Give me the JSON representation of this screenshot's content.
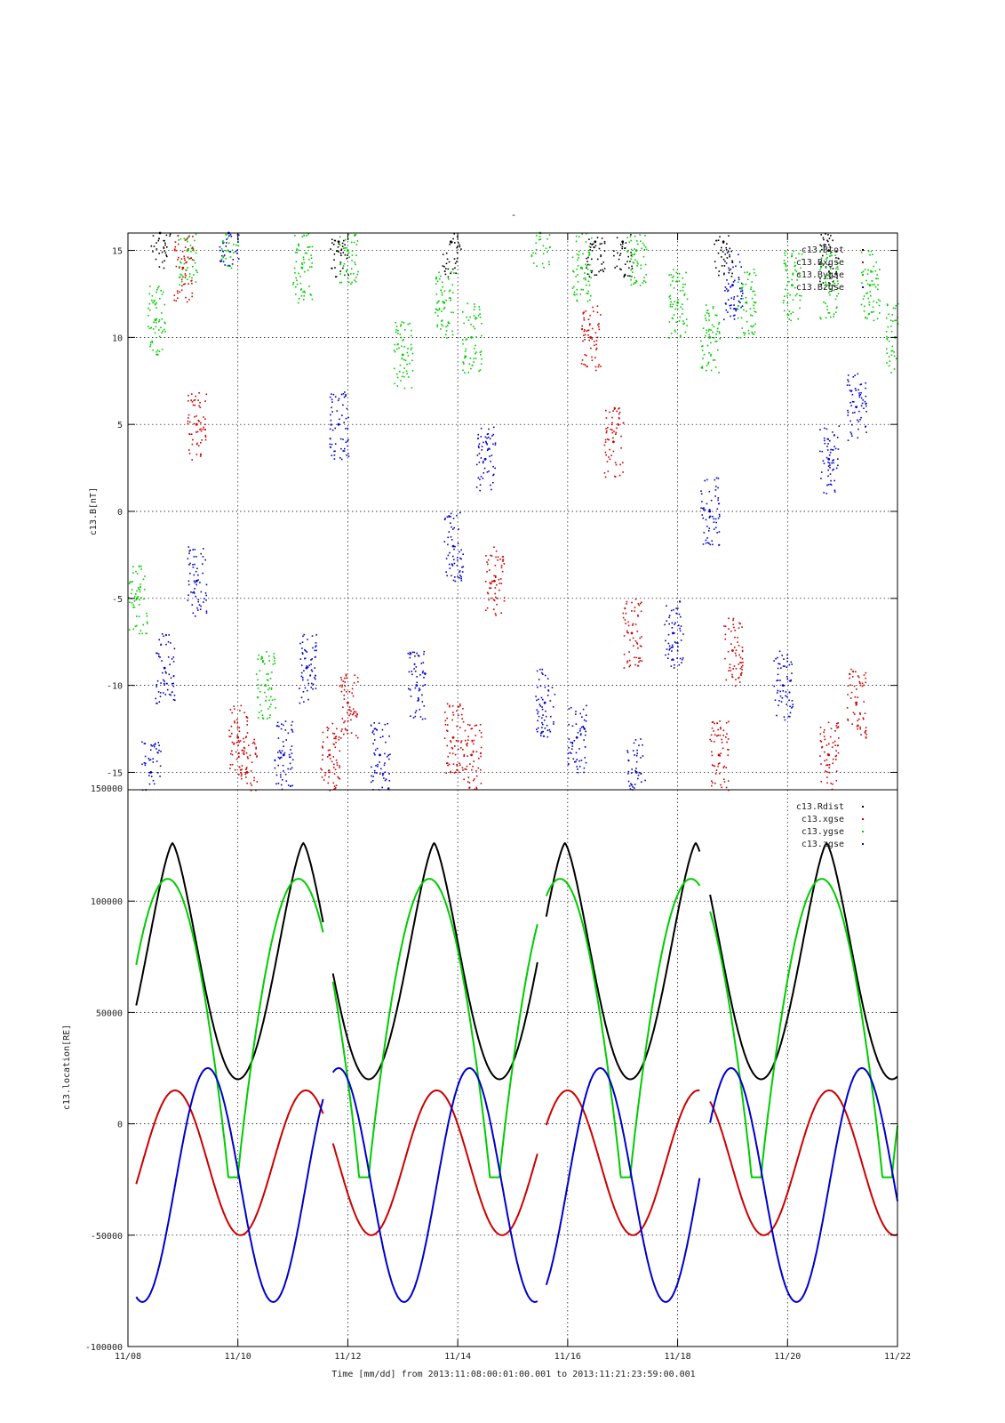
{
  "figure": {
    "top_title": "-",
    "xlabel": "Time [mm/dd]  from 2013:11:08:00:01:00.001  to  2013:11:21:23:59:00.001"
  },
  "colors": {
    "black": "#000000",
    "red": "#cc0000",
    "green": "#00cc00",
    "blue": "#0000cc",
    "grid": "#000000"
  },
  "chart_data": [
    {
      "type": "scatter",
      "ylabel": "c13.B[nT]",
      "ylim": [
        -16,
        16
      ],
      "xlim": [
        "2013-11-08",
        "2013-11-22"
      ],
      "grid": true,
      "legend_position": "top-right",
      "yticks": [
        -15,
        -10,
        -5,
        0,
        5,
        10,
        15
      ],
      "yticklabels": [
        "-15",
        "-10",
        "-5",
        "0",
        "5",
        "10",
        "15"
      ],
      "series": [
        {
          "name": "c13.Btot",
          "color": "#000000",
          "x": [
            "2013-11-08 14:00",
            "2013-11-11 20:00",
            "2013-11-13 21:00",
            "2013-11-16 12:00",
            "2013-11-17 00:00",
            "2013-11-18 20:00",
            "2013-11-20 18:00"
          ],
          "values": [
            16,
            15.5,
            15.5,
            15.5,
            15.5,
            15.5,
            15
          ]
        },
        {
          "name": "c13.Bxgse",
          "color": "#cc0000",
          "x": [
            "2013-11-09 00:00",
            "2013-11-09 06:00",
            "2013-11-10 00:00",
            "2013-11-10 04:00",
            "2013-11-11 16:00",
            "2013-11-12 00:00",
            "2013-11-13 22:00",
            "2013-11-14 06:00",
            "2013-11-14 16:00",
            "2013-11-16 10:00",
            "2013-11-16 20:00",
            "2013-11-17 04:00",
            "2013-11-18 18:00",
            "2013-11-19 00:00",
            "2013-11-20 18:00",
            "2013-11-21 06:00"
          ],
          "values": [
            14,
            5,
            -13,
            -15,
            -14,
            -11,
            -13,
            -14,
            -4,
            10,
            4,
            -7,
            -14,
            -8,
            -14,
            -11
          ]
        },
        {
          "name": "c13.Bygse",
          "color": "#00cc00",
          "x": [
            "2013-11-08 04:00",
            "2013-11-08 12:00",
            "2013-11-09 02:00",
            "2013-11-09 20:00",
            "2013-11-10 12:00",
            "2013-11-11 04:00",
            "2013-11-12 00:00",
            "2013-11-13 00:00",
            "2013-11-13 18:00",
            "2013-11-14 06:00",
            "2013-11-15 12:00",
            "2013-11-16 06:00",
            "2013-11-17 06:00",
            "2013-11-18 00:00",
            "2013-11-18 14:00",
            "2013-11-19 06:00",
            "2013-11-20 02:00",
            "2013-11-20 18:00",
            "2013-11-21 12:00",
            "2013-11-21 23:00"
          ],
          "values": [
            -5,
            11,
            15,
            16,
            -10,
            14,
            15,
            9,
            12,
            10,
            16,
            14,
            15,
            12,
            10,
            12,
            13,
            13,
            13,
            10
          ]
        },
        {
          "name": "c13.Bzgse",
          "color": "#0000cc",
          "x": [
            "2013-11-08 10:00",
            "2013-11-08 16:00",
            "2013-11-09 06:00",
            "2013-11-09 20:00",
            "2013-11-10 20:00",
            "2013-11-11 06:00",
            "2013-11-11 20:00",
            "2013-11-12 14:00",
            "2013-11-13 06:00",
            "2013-11-13 22:00",
            "2013-11-14 12:00",
            "2013-11-15 14:00",
            "2013-11-16 04:00",
            "2013-11-17 06:00",
            "2013-11-17 22:00",
            "2013-11-18 14:00",
            "2013-11-19 00:00",
            "2013-11-19 22:00",
            "2013-11-20 18:00",
            "2013-11-21 06:00"
          ],
          "values": [
            -15,
            -9,
            -4,
            16,
            -14,
            -9,
            5,
            -14,
            -10,
            -2,
            3,
            -11,
            -13,
            -15,
            -7,
            0,
            13,
            -10,
            3,
            6
          ]
        }
      ]
    },
    {
      "type": "line",
      "ylabel": "c13.location[RE]",
      "ylim": [
        -100000,
        150000
      ],
      "xlim": [
        "2013-11-08",
        "2013-11-22"
      ],
      "grid": true,
      "legend_position": "top-right",
      "yticks": [
        -100000,
        -50000,
        0,
        50000,
        100000,
        150000
      ],
      "yticklabels": [
        "-100000",
        "-50000",
        "0",
        "50000",
        "100000",
        "150000"
      ],
      "xticks": [
        "2013-11-08",
        "2013-11-10",
        "2013-11-12",
        "2013-11-14",
        "2013-11-16",
        "2013-11-18",
        "2013-11-20",
        "2013-11-22"
      ],
      "categories": [
        "11/08",
        "11/10",
        "11/12",
        "11/14",
        "11/16",
        "11/18",
        "11/20",
        "11/22"
      ],
      "orbit_period_days": 2.38,
      "series": [
        {
          "name": "c13.Rdist",
          "color": "#000000",
          "min": 20000,
          "max": 126000
        },
        {
          "name": "c13.xgse",
          "color": "#cc0000",
          "min": -50000,
          "max": 15000
        },
        {
          "name": "c13.ygse",
          "color": "#00cc00",
          "min": -24000,
          "max": 110000
        },
        {
          "name": "c13.zgse",
          "color": "#0000cc",
          "min": -80000,
          "max": 25000
        }
      ]
    }
  ]
}
